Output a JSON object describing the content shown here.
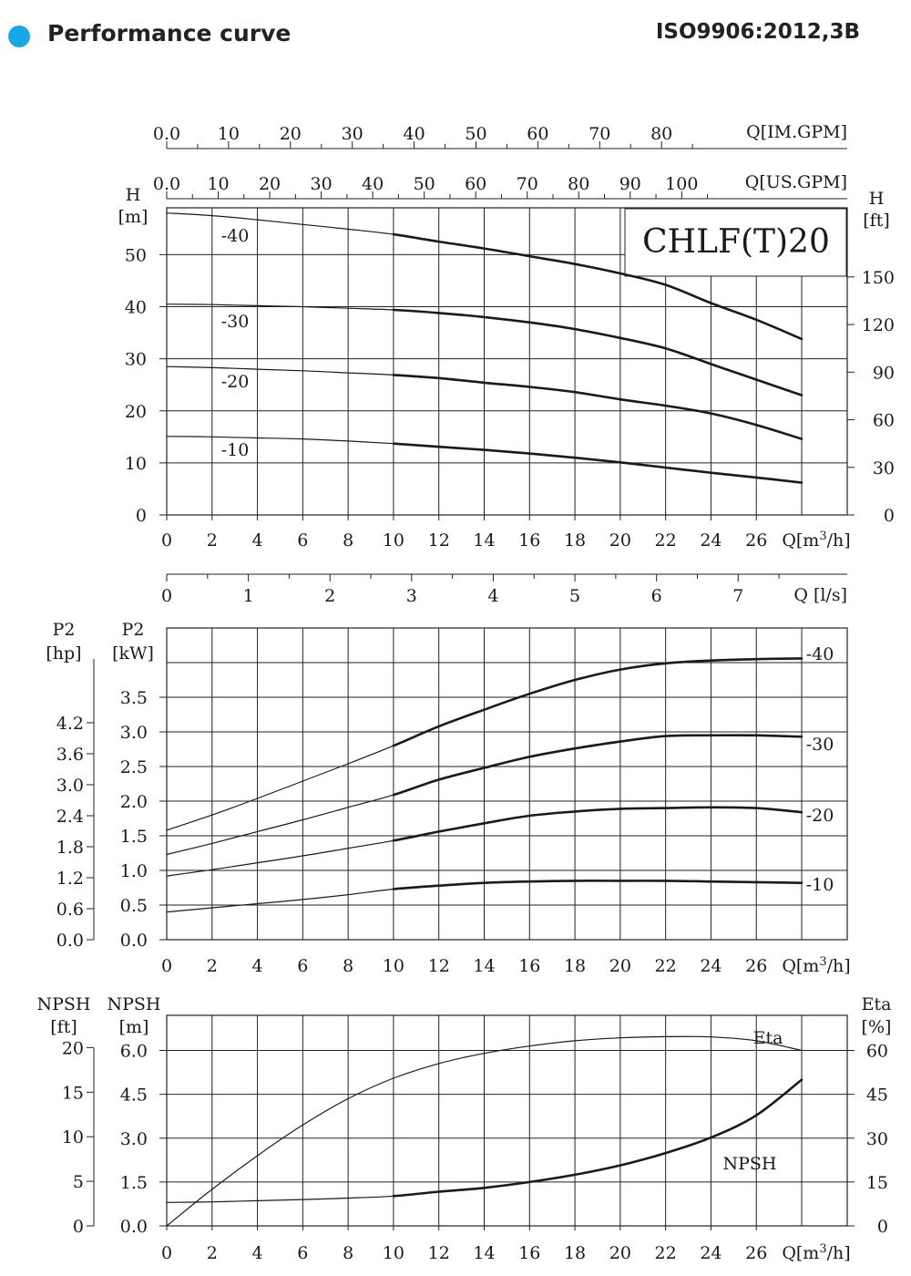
{
  "header": {
    "title": "Performance curve",
    "standard": "ISO9906:2012,3B",
    "dot_color": "#1aa7e8"
  },
  "scales": {
    "im_gpm": {
      "ticks": [
        "0.0",
        "10",
        "20",
        "30",
        "40",
        "50",
        "60",
        "70",
        "80"
      ],
      "unit": "Q[IM.GPM]"
    },
    "us_gpm": {
      "ticks": [
        "0.0",
        "10",
        "20",
        "30",
        "40",
        "50",
        "60",
        "70",
        "80",
        "90",
        "100"
      ],
      "unit": "Q[US.GPM]"
    },
    "ls": {
      "ticks": [
        "0",
        "1",
        "2",
        "3",
        "4",
        "5",
        "6",
        "7"
      ],
      "unit": "Q [l/s]"
    },
    "q_m3h": {
      "ticks": [
        "0",
        "2",
        "4",
        "6",
        "8",
        "10",
        "12",
        "14",
        "16",
        "18",
        "20",
        "22",
        "24",
        "26"
      ],
      "unit_prefix": "Q[m",
      "unit_sup": "3",
      "unit_suffix": "/h]"
    }
  },
  "chart_data": [
    {
      "type": "line",
      "title": "CHLF(T)20",
      "x_label": "Q[m³/h]",
      "x_range": [
        0,
        28
      ],
      "y_left": {
        "label": "H",
        "unit": "[m]",
        "ticks": [
          "0",
          "10",
          "20",
          "30",
          "40",
          "50"
        ],
        "range": [
          0,
          59
        ]
      },
      "y_right": {
        "label": "H",
        "unit": "[ft]",
        "ticks": [
          "0",
          "30",
          "60",
          "90",
          "120",
          "150"
        ]
      },
      "series": [
        {
          "name": "-40",
          "x": [
            0,
            2,
            4,
            6,
            8,
            10,
            12,
            14,
            16,
            18,
            20,
            22,
            24,
            26,
            28
          ],
          "y": [
            58.0,
            57.5,
            56.7,
            55.8,
            54.9,
            53.9,
            52.5,
            51.2,
            49.7,
            48.2,
            46.4,
            44.2,
            40.7,
            37.5,
            33.8
          ]
        },
        {
          "name": "-30",
          "x": [
            0,
            2,
            4,
            6,
            8,
            10,
            12,
            14,
            16,
            18,
            20,
            22,
            24,
            26,
            28
          ],
          "y": [
            40.5,
            40.4,
            40.2,
            40.0,
            39.7,
            39.4,
            38.8,
            38.0,
            37.0,
            35.7,
            34.0,
            32.0,
            29.0,
            26.0,
            23.0
          ]
        },
        {
          "name": "-20",
          "x": [
            0,
            2,
            4,
            6,
            8,
            10,
            12,
            14,
            16,
            18,
            20,
            22,
            24,
            26,
            28
          ],
          "y": [
            28.5,
            28.3,
            28.0,
            27.7,
            27.3,
            26.9,
            26.3,
            25.4,
            24.6,
            23.6,
            22.2,
            21.0,
            19.5,
            17.3,
            14.6
          ]
        },
        {
          "name": "-10",
          "x": [
            0,
            2,
            4,
            6,
            8,
            10,
            12,
            14,
            16,
            18,
            20,
            22,
            24,
            26,
            28
          ],
          "y": [
            15.1,
            15.0,
            14.8,
            14.6,
            14.2,
            13.7,
            13.1,
            12.5,
            11.8,
            11.0,
            10.1,
            9.1,
            8.1,
            7.2,
            6.2
          ]
        }
      ]
    },
    {
      "type": "line",
      "x_label": "Q[m³/h]",
      "x_range": [
        0,
        28
      ],
      "y_left": {
        "label": "P2",
        "unit": "[kW]",
        "ticks": [
          "0.0",
          "0.5",
          "1.0",
          "1.5",
          "2.0",
          "2.5",
          "3.0",
          "3.5"
        ],
        "range": [
          0,
          4.5
        ]
      },
      "y_left2": {
        "label": "P2",
        "unit": "[hp]",
        "ticks": [
          "0.0",
          "0.6",
          "1.2",
          "1.8",
          "2.4",
          "3.0",
          "3.6",
          "4.2"
        ]
      },
      "series": [
        {
          "name": "-40",
          "x": [
            0,
            2,
            4,
            6,
            8,
            10,
            12,
            14,
            16,
            18,
            20,
            22,
            24,
            26,
            28
          ],
          "y": [
            1.58,
            1.8,
            2.04,
            2.29,
            2.54,
            2.8,
            3.08,
            3.32,
            3.55,
            3.75,
            3.9,
            3.99,
            4.03,
            4.05,
            4.06
          ]
        },
        {
          "name": "-30",
          "x": [
            0,
            2,
            4,
            6,
            8,
            10,
            12,
            14,
            16,
            18,
            20,
            22,
            24,
            26,
            28
          ],
          "y": [
            1.23,
            1.39,
            1.56,
            1.73,
            1.91,
            2.09,
            2.31,
            2.48,
            2.64,
            2.76,
            2.86,
            2.94,
            2.95,
            2.95,
            2.93
          ]
        },
        {
          "name": "-20",
          "x": [
            0,
            2,
            4,
            6,
            8,
            10,
            12,
            14,
            16,
            18,
            20,
            22,
            24,
            26,
            28
          ],
          "y": [
            0.92,
            1.01,
            1.11,
            1.21,
            1.32,
            1.43,
            1.56,
            1.68,
            1.79,
            1.85,
            1.89,
            1.9,
            1.91,
            1.9,
            1.84
          ]
        },
        {
          "name": "-10",
          "x": [
            0,
            2,
            4,
            6,
            8,
            10,
            12,
            14,
            16,
            18,
            20,
            22,
            24,
            26,
            28
          ],
          "y": [
            0.4,
            0.46,
            0.52,
            0.58,
            0.65,
            0.73,
            0.78,
            0.82,
            0.84,
            0.85,
            0.85,
            0.85,
            0.84,
            0.83,
            0.82
          ]
        }
      ]
    },
    {
      "type": "line",
      "x_label": "Q[m³/h]",
      "x_range": [
        0,
        28
      ],
      "y_left": {
        "label": "NPSH",
        "unit": "[m]",
        "ticks": [
          "0.0",
          "1.5",
          "3.0",
          "4.5",
          "6.0"
        ],
        "range": [
          0,
          7.2
        ]
      },
      "y_left2": {
        "label": "NPSH",
        "unit": "[ft]",
        "ticks": [
          "0",
          "5",
          "10",
          "15",
          "20"
        ]
      },
      "y_right": {
        "label": "Eta",
        "unit": "[%]",
        "ticks": [
          "0",
          "15",
          "30",
          "45",
          "60"
        ],
        "range": [
          0,
          72
        ]
      },
      "series": [
        {
          "name": "Eta",
          "axis": "right",
          "x": [
            0,
            2,
            4,
            6,
            8,
            10,
            12,
            14,
            16,
            18,
            20,
            22,
            24,
            26,
            28
          ],
          "y": [
            0,
            12.5,
            24,
            34.5,
            43.5,
            50.5,
            55.5,
            59,
            61.5,
            63.3,
            64.3,
            64.7,
            64.6,
            63.3,
            60
          ]
        },
        {
          "name": "NPSH",
          "axis": "left",
          "x": [
            0,
            2,
            4,
            6,
            8,
            10,
            12,
            14,
            16,
            18,
            20,
            22,
            24,
            26,
            28
          ],
          "y": [
            0.8,
            0.82,
            0.86,
            0.9,
            0.95,
            1.02,
            1.17,
            1.3,
            1.5,
            1.75,
            2.07,
            2.49,
            3.02,
            3.78,
            5.0
          ]
        }
      ]
    }
  ],
  "labels": {
    "upper_series": [
      "-40",
      "-30",
      "-20",
      "-10"
    ],
    "power_series": [
      "-40",
      "-30",
      "-20",
      "-10"
    ],
    "eta_label": "Eta",
    "npsh_label": "NPSH"
  }
}
